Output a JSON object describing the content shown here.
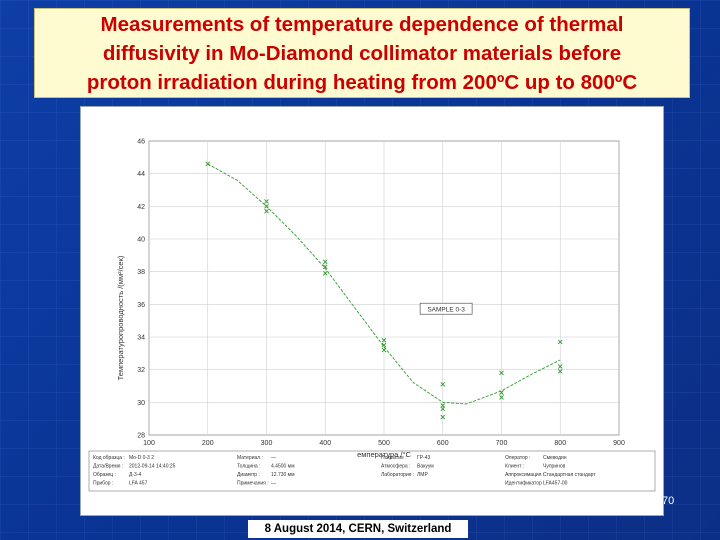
{
  "slide": {
    "title": "Measurements of temperature dependence of thermal\ndiffusivity in Mo-Diamond collimator materials before\nproton irradiation during heating from 200ºC up to 800ºC",
    "footer": "8 August 2014, CERN, Switzerland",
    "page_number": "70",
    "colors": {
      "title_text": "#cc0000",
      "title_bg": "#fefbd0",
      "background": "#0a3596"
    }
  },
  "chart_data": {
    "type": "scatter",
    "xlabel": "емпература /°C",
    "ylabel": "Температуропроводность /(мм²/сек)",
    "xlim": [
      100,
      900
    ],
    "ylim": [
      28,
      46
    ],
    "x_ticks": [
      "100",
      "200",
      "300",
      "400",
      "500",
      "600",
      "700",
      "800",
      "900"
    ],
    "y_ticks": [
      "28",
      "30",
      "32",
      "34",
      "36",
      "38",
      "40",
      "42",
      "44",
      "46"
    ],
    "grid": true,
    "annotation": "SAMPLE 0-3",
    "series": [
      {
        "color": "#2e9a2e",
        "points": [
          [
            200,
            44.6
          ],
          [
            300,
            42.3
          ],
          [
            300,
            42.0
          ],
          [
            300,
            41.7
          ],
          [
            400,
            38.6
          ],
          [
            400,
            38.3
          ],
          [
            400,
            37.9
          ],
          [
            500,
            33.8
          ],
          [
            500,
            33.5
          ],
          [
            500,
            33.2
          ],
          [
            600,
            31.1
          ],
          [
            600,
            29.8
          ],
          [
            600,
            29.6
          ],
          [
            600,
            29.1
          ],
          [
            700,
            31.8
          ],
          [
            700,
            30.6
          ],
          [
            700,
            30.3
          ],
          [
            800,
            33.7
          ],
          [
            800,
            32.2
          ],
          [
            800,
            31.9
          ]
        ],
        "fit": [
          [
            200,
            44.6
          ],
          [
            250,
            43.6
          ],
          [
            300,
            42.0
          ],
          [
            350,
            40.2
          ],
          [
            400,
            38.2
          ],
          [
            450,
            35.8
          ],
          [
            500,
            33.4
          ],
          [
            550,
            31.2
          ],
          [
            600,
            30.0
          ],
          [
            640,
            29.9
          ],
          [
            700,
            30.7
          ],
          [
            750,
            31.7
          ],
          [
            800,
            32.6
          ]
        ]
      }
    ],
    "info_panel": [
      [
        "Код образца :",
        "Mo-D 0-3 2",
        "Материал :",
        "—",
        "Покрытие :",
        "ГР-43",
        "Оператор :",
        "Смеводин"
      ],
      [
        "Дата/Время :",
        "2012-09-14 14:40:25",
        "Толщина :",
        "4.4500 мм",
        "Атмосфера :",
        "Вакуум",
        "Клиент :",
        "Чупринов"
      ],
      [
        "Образец :",
        "Д-3-4",
        "Диаметр :",
        "12.730 мм",
        "Лаборатория :",
        "ЛМР",
        "Аппроксимация :",
        "Стандартная стандарт"
      ],
      [
        "Прибор :",
        "LFA 457",
        "Примечания :",
        "—",
        "",
        "",
        "Идентификатор :",
        "LFA457-00"
      ]
    ]
  }
}
